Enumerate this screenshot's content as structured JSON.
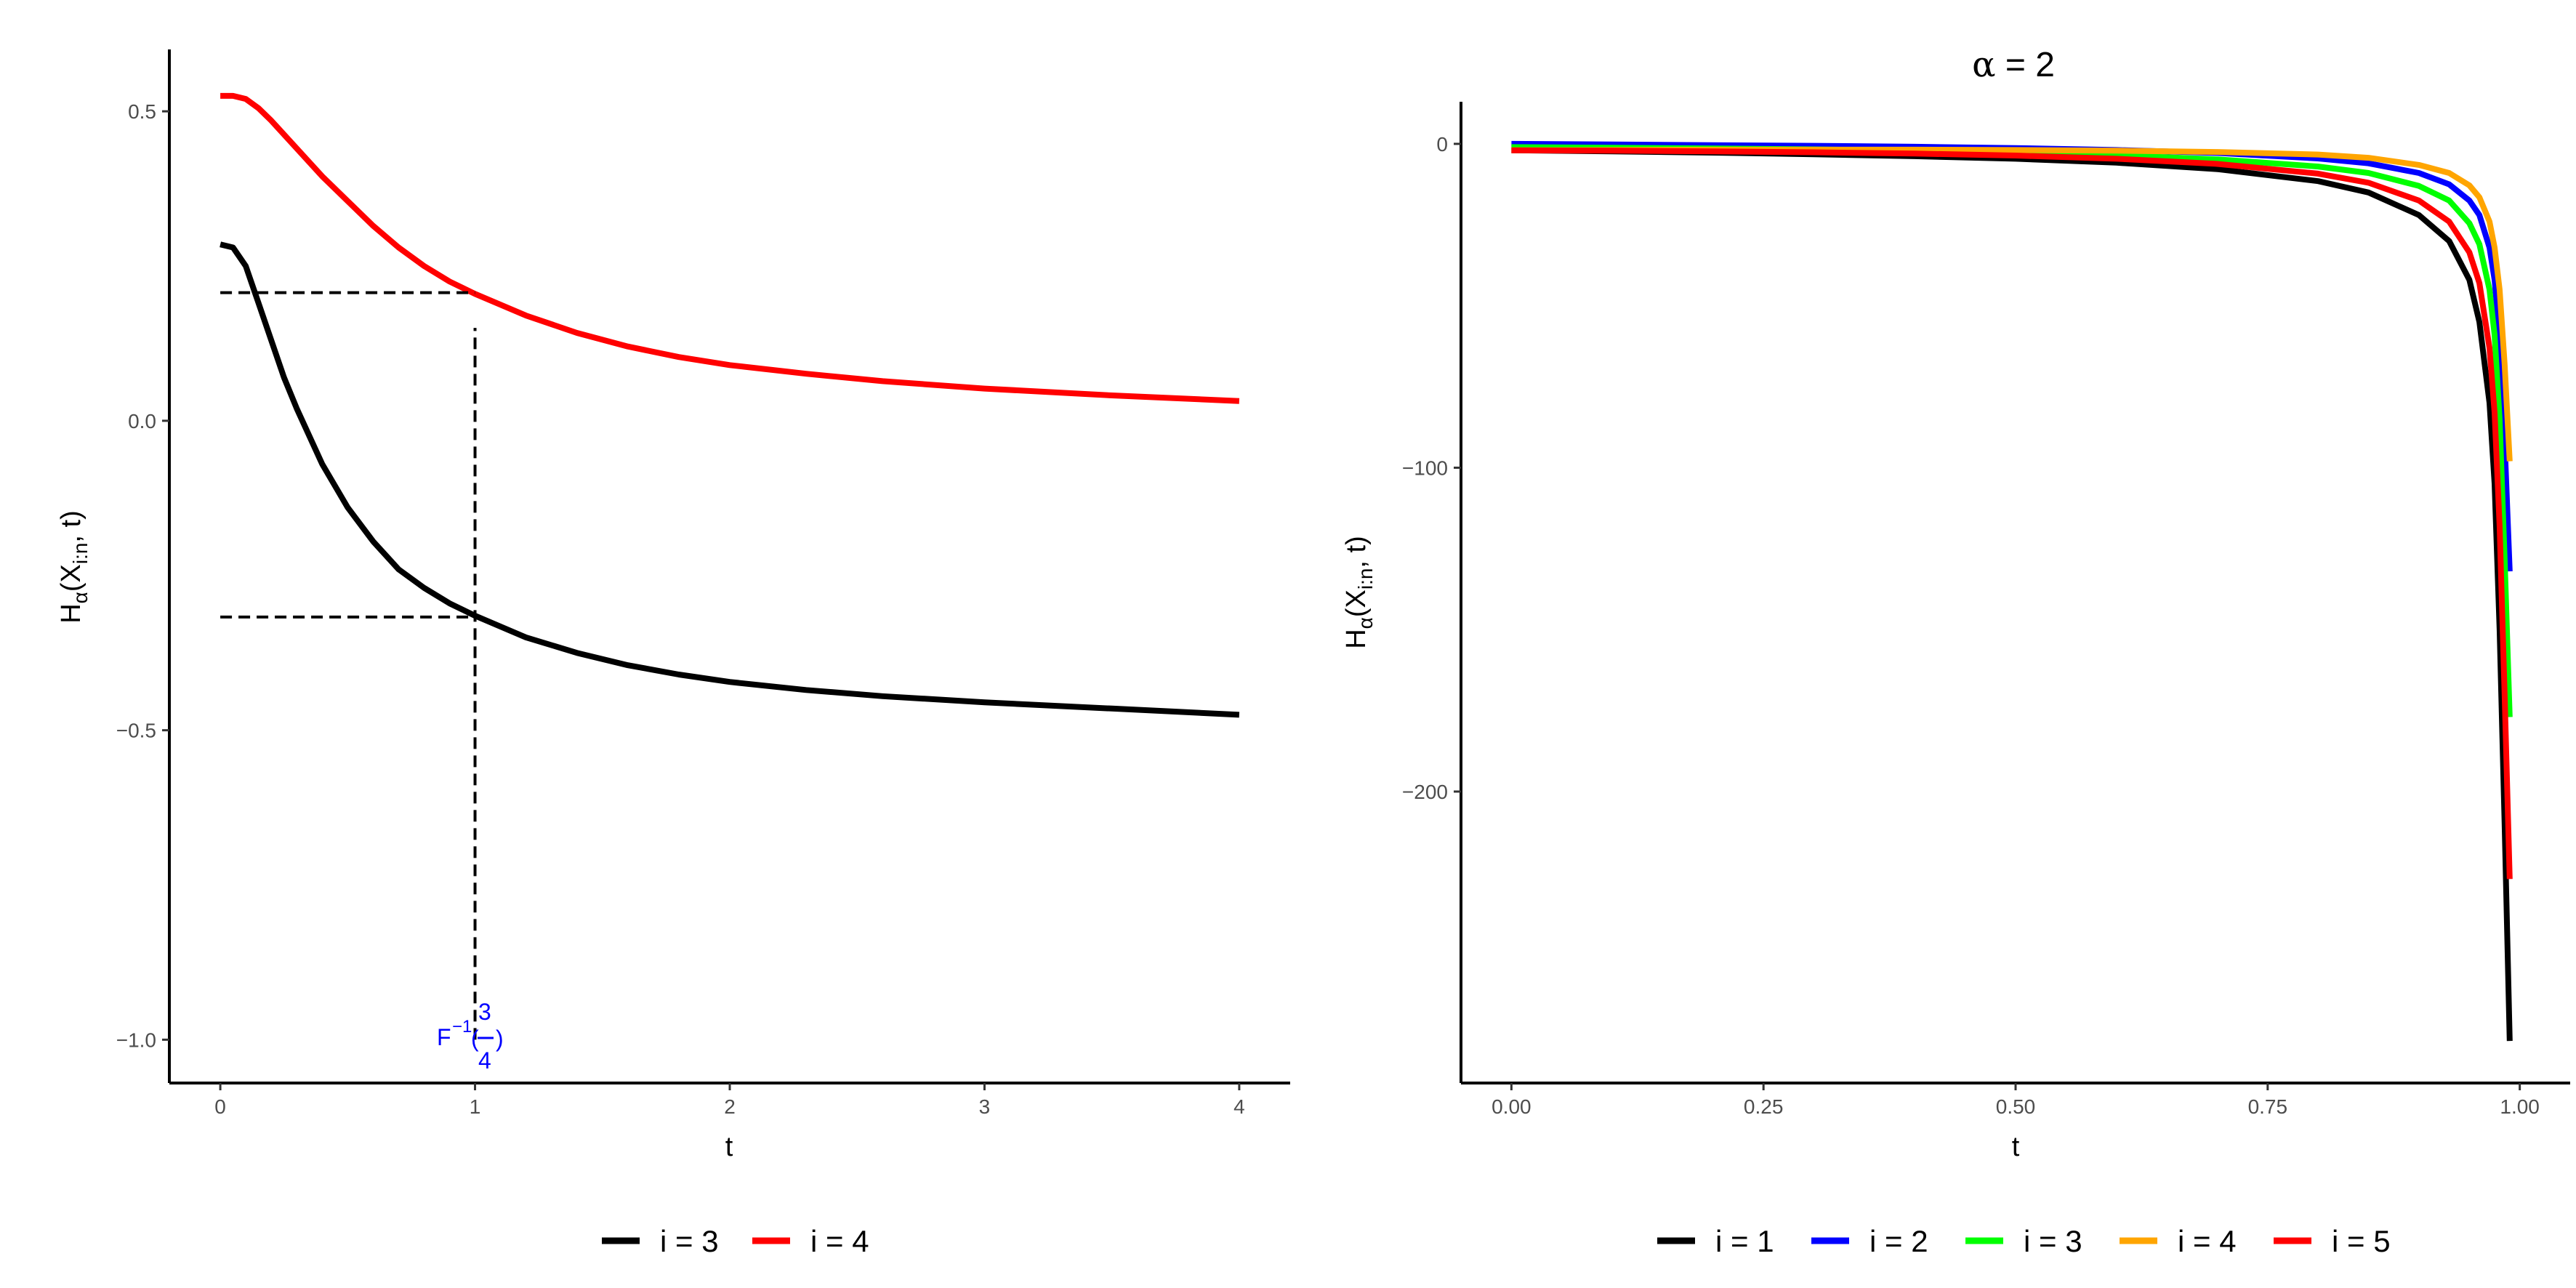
{
  "chart_data": [
    {
      "type": "line",
      "title": "",
      "xlabel": "t",
      "ylabel": {
        "main": "H",
        "sub": "α",
        "paren": "(X",
        "sub2": "i:n",
        "rest": ", t)"
      },
      "xlim": [
        -0.2,
        4.2
      ],
      "ylim": [
        -1.07,
        0.6
      ],
      "xticks": [
        0,
        1,
        2,
        3,
        4
      ],
      "xtick_labels": [
        "0",
        "1",
        "2",
        "3",
        "4"
      ],
      "yticks": [
        0.5,
        0.0,
        -0.5,
        -1.0
      ],
      "ytick_labels": [
        "0.5",
        "0.0",
        "−0.5",
        "−1.0"
      ],
      "grid": false,
      "legend_position": "bottom",
      "series": [
        {
          "name": "i = 3",
          "color": "#000000",
          "x": [
            0,
            0.05,
            0.1,
            0.15,
            0.2,
            0.25,
            0.3,
            0.4,
            0.5,
            0.6,
            0.7,
            0.8,
            0.9,
            1.0,
            1.2,
            1.4,
            1.6,
            1.8,
            2.0,
            2.3,
            2.6,
            3.0,
            3.5,
            4.0
          ],
          "y": [
            0.285,
            0.28,
            0.25,
            0.19,
            0.13,
            0.07,
            0.02,
            -0.07,
            -0.14,
            -0.195,
            -0.24,
            -0.27,
            -0.295,
            -0.315,
            -0.35,
            -0.375,
            -0.395,
            -0.41,
            -0.422,
            -0.435,
            -0.445,
            -0.455,
            -0.465,
            -0.475
          ]
        },
        {
          "name": "i = 4",
          "color": "#ff0000",
          "x": [
            0,
            0.05,
            0.1,
            0.15,
            0.2,
            0.3,
            0.4,
            0.5,
            0.6,
            0.7,
            0.8,
            0.9,
            1.0,
            1.2,
            1.4,
            1.6,
            1.8,
            2.0,
            2.3,
            2.6,
            3.0,
            3.5,
            4.0
          ],
          "y": [
            0.525,
            0.525,
            0.52,
            0.505,
            0.485,
            0.44,
            0.395,
            0.355,
            0.315,
            0.28,
            0.25,
            0.225,
            0.205,
            0.17,
            0.142,
            0.12,
            0.103,
            0.09,
            0.076,
            0.064,
            0.052,
            0.041,
            0.032
          ]
        }
      ],
      "reference_lines": [
        {
          "x0": 0,
          "x1": 1,
          "y": 0.207
        },
        {
          "x0": 0,
          "x1": 1,
          "y": -0.317
        },
        {
          "x": 1,
          "y0": -1.0,
          "y1": 0.15
        }
      ],
      "annotation": {
        "prefix": "F",
        "sup": "−1",
        "open": "(",
        "num": "3",
        "den": "4",
        "close": ")",
        "x": 1,
        "y": -1.0
      }
    },
    {
      "type": "line",
      "title": {
        "symbol": "α",
        "rest": " = 2"
      },
      "xlabel": "t",
      "ylabel": {
        "main": "H",
        "sub": "α",
        "paren": "(X",
        "sub2": "i:n",
        "rest": ", t)"
      },
      "xlim": [
        -0.05,
        1.05
      ],
      "ylim": [
        -290,
        13
      ],
      "xticks": [
        0,
        0.25,
        0.5,
        0.75,
        1.0
      ],
      "xtick_labels": [
        "0.00",
        "0.25",
        "0.50",
        "0.75",
        "1.00"
      ],
      "yticks": [
        0,
        -100,
        -200
      ],
      "ytick_labels": [
        "0",
        "−100",
        "−200"
      ],
      "grid": false,
      "legend_position": "bottom",
      "series": [
        {
          "name": "i = 1",
          "color": "#000000",
          "x": [
            0,
            0.1,
            0.2,
            0.3,
            0.4,
            0.5,
            0.6,
            0.7,
            0.8,
            0.85,
            0.9,
            0.93,
            0.95,
            0.96,
            0.97,
            0.975,
            0.98,
            0.985,
            0.99
          ],
          "y": [
            -2,
            -2.3,
            -2.7,
            -3.2,
            -3.8,
            -4.6,
            -5.8,
            -7.8,
            -11.5,
            -15,
            -22,
            -30,
            -42,
            -55,
            -80,
            -105,
            -150,
            -210,
            -277
          ]
        },
        {
          "name": "i = 2",
          "color": "#0000ff",
          "x": [
            0,
            0.1,
            0.2,
            0.3,
            0.4,
            0.5,
            0.6,
            0.7,
            0.8,
            0.85,
            0.9,
            0.93,
            0.95,
            0.96,
            0.97,
            0.975,
            0.98,
            0.985,
            0.99
          ],
          "y": [
            0,
            -0.2,
            -0.4,
            -0.6,
            -0.9,
            -1.3,
            -1.9,
            -2.8,
            -4.5,
            -6,
            -9,
            -12.5,
            -17.5,
            -22,
            -32,
            -42,
            -60,
            -92,
            -132
          ]
        },
        {
          "name": "i = 3",
          "color": "#00ff00",
          "x": [
            0,
            0.1,
            0.2,
            0.3,
            0.4,
            0.5,
            0.6,
            0.7,
            0.8,
            0.85,
            0.9,
            0.93,
            0.95,
            0.96,
            0.97,
            0.975,
            0.98,
            0.985,
            0.99
          ],
          "y": [
            -1,
            -1.2,
            -1.4,
            -1.7,
            -2.1,
            -2.7,
            -3.5,
            -4.8,
            -7,
            -9,
            -13,
            -17.5,
            -24.5,
            -31,
            -45,
            -59,
            -85,
            -128,
            -177
          ]
        },
        {
          "name": "i = 4",
          "color": "#ffa500",
          "x": [
            0,
            0.1,
            0.2,
            0.3,
            0.4,
            0.5,
            0.6,
            0.7,
            0.8,
            0.85,
            0.9,
            0.93,
            0.95,
            0.96,
            0.97,
            0.975,
            0.98,
            0.985,
            0.99
          ],
          "y": [
            -2,
            -1.9,
            -1.8,
            -1.8,
            -1.8,
            -1.9,
            -2.1,
            -2.5,
            -3.3,
            -4.3,
            -6.5,
            -9,
            -12.8,
            -16.5,
            -24,
            -32,
            -45,
            -68,
            -98
          ]
        },
        {
          "name": "i = 5",
          "color": "#ff0000",
          "x": [
            0,
            0.1,
            0.2,
            0.3,
            0.4,
            0.5,
            0.6,
            0.7,
            0.8,
            0.85,
            0.9,
            0.93,
            0.95,
            0.96,
            0.97,
            0.975,
            0.98,
            0.985,
            0.99
          ],
          "y": [
            -2,
            -2.1,
            -2.3,
            -2.6,
            -3.0,
            -3.6,
            -4.6,
            -6.2,
            -9.2,
            -12,
            -17.5,
            -24,
            -33.5,
            -43,
            -63,
            -83,
            -118,
            -170,
            -227
          ]
        }
      ]
    }
  ]
}
